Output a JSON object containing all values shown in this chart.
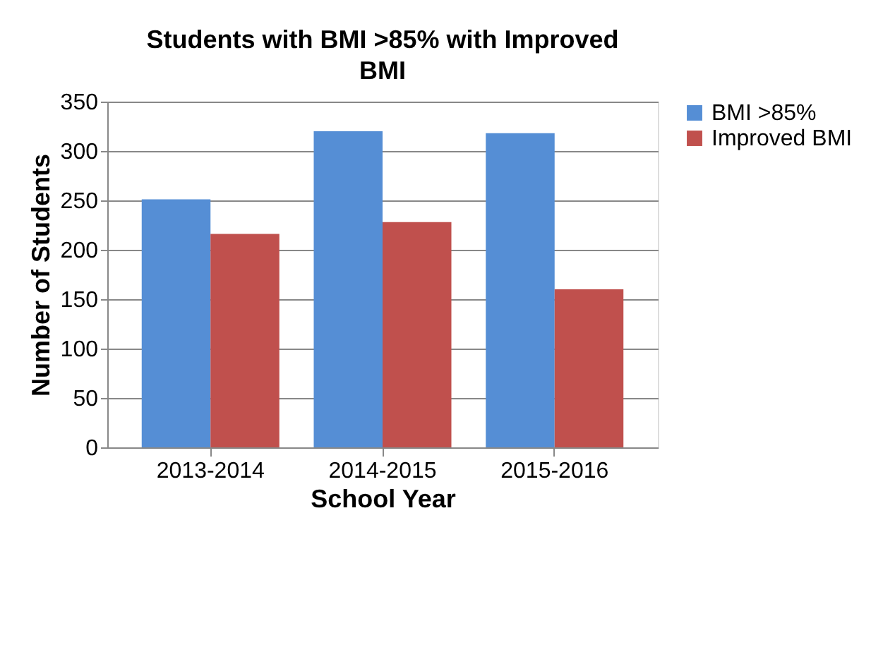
{
  "chart_data": {
    "type": "bar",
    "title": "Students with BMI >85% with Improved BMI",
    "xlabel": "School Year",
    "ylabel": "Number of Students",
    "categories": [
      "2013-2014",
      "2014-2015",
      "2015-2016"
    ],
    "series": [
      {
        "name": "BMI >85%",
        "color": "#558ed5",
        "values": [
          251,
          320,
          318
        ]
      },
      {
        "name": "Improved BMI",
        "color": "#c0504d",
        "values": [
          216,
          228,
          160
        ]
      }
    ],
    "ylim": [
      0,
      350
    ],
    "yticks": [
      0,
      50,
      100,
      150,
      200,
      250,
      300,
      350
    ],
    "grid": "y",
    "legend": "right"
  }
}
